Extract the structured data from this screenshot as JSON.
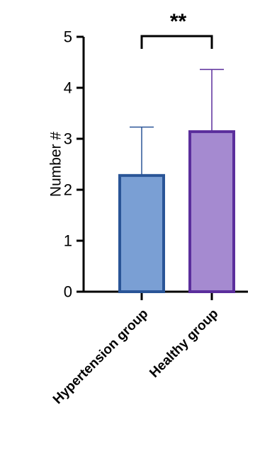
{
  "chart_data": {
    "type": "bar",
    "categories": [
      "Hypertension group",
      "Healthy group"
    ],
    "values": [
      2.28,
      3.14
    ],
    "error_upper": [
      3.23,
      4.36
    ],
    "ylabel": "Number #",
    "xlabel": "",
    "ylim": [
      0,
      5
    ],
    "yticks": [
      "0",
      "1",
      "2",
      "3",
      "4",
      "5"
    ],
    "grid": false,
    "legend": "none",
    "significance": {
      "label": "**",
      "between": [
        "Hypertension group",
        "Healthy group"
      ]
    },
    "colors": {
      "fills": [
        "#7A9FD4",
        "#A58AD0"
      ],
      "strokes": [
        "#2A5597",
        "#5B2E9C"
      ],
      "axis": "#000000"
    }
  }
}
